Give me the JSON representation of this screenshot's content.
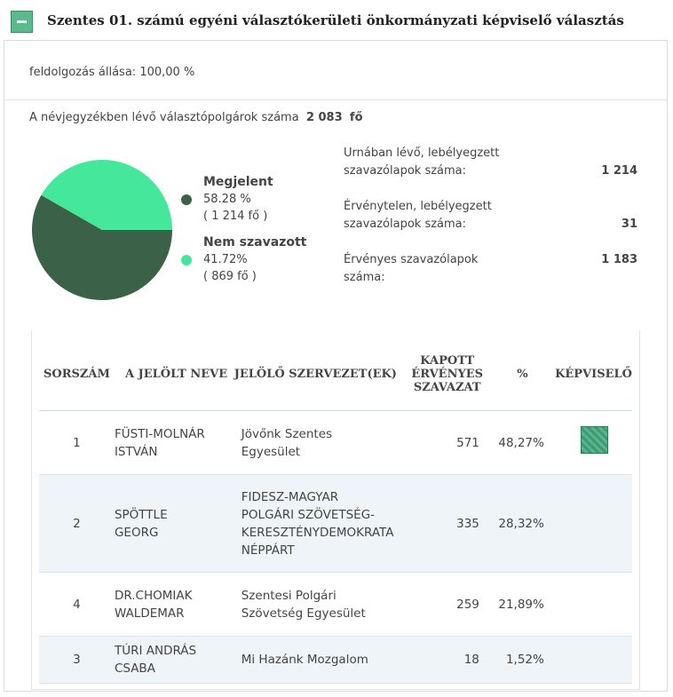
{
  "header": {
    "title": "Szentes 01. számú egyéni választókerületi önkormányzati képviselő választás"
  },
  "status": {
    "label": "feldolgozás állása:",
    "value": "100,00 %"
  },
  "voters": {
    "label": "A névjegyzékben lévő választópolgárok száma",
    "value": "2 083",
    "unit": "fő"
  },
  "chart_data": {
    "type": "pie",
    "categories": [
      "Megjelent",
      "Nem szavazott"
    ],
    "values": [
      58.28,
      41.72
    ],
    "value_labels": [
      "58.28 %",
      "41.72%"
    ],
    "counts": [
      "( 1 214  fő )",
      "( 869 fő )"
    ],
    "colors": [
      "#3b6148",
      "#45e89a"
    ]
  },
  "stats": [
    {
      "label": "Urnában lévő, lebélyegzett szavazólapok száma:",
      "value": "1 214"
    },
    {
      "label": "Érvénytelen, lebélyegzett szavazólapok száma:",
      "value": "31"
    },
    {
      "label": "Érvényes szavazólapok száma:",
      "value": "1 183"
    }
  ],
  "table": {
    "columns": [
      "SORSZÁM",
      "A JELÖLT NEVE",
      "JELÖLŐ SZERVEZET(EK)",
      "KAPOTT ÉRVÉNYES SZAVAZAT",
      "%",
      "KÉPVISELŐ"
    ],
    "rows": [
      {
        "number": "1",
        "name": "FÜSTI-MOLNÁR ISTVÁN",
        "org": "Jövőnk Szentes Egyesület",
        "votes": 571,
        "percent": "48,27%",
        "elected": true
      },
      {
        "number": "2",
        "name": "SPÖTTLE GEORG",
        "org": "FIDESZ-MAGYAR POLGÁRI SZÖVETSÉG-KERESZTÉNYDEMOKRATA NÉPPÁRT",
        "votes": 335,
        "percent": "28,32%",
        "elected": false
      },
      {
        "number": "4",
        "name": "DR.CHOMIAK WALDEMAR",
        "org": "Szentesi Polgári Szövetség Egyesület",
        "votes": 259,
        "percent": "21,89%",
        "elected": false
      },
      {
        "number": "3",
        "name": "TÚRI ANDRÁS CSABA",
        "org": "Mi Hazánk Mozgalom",
        "votes": 18,
        "percent": "1,52%",
        "elected": false
      }
    ]
  }
}
